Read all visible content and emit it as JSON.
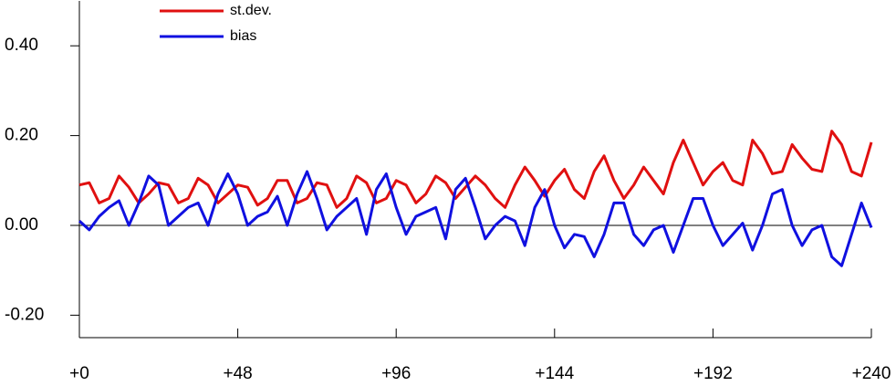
{
  "chart_data": {
    "type": "line",
    "x": [
      0,
      3,
      6,
      9,
      12,
      15,
      18,
      21,
      24,
      27,
      30,
      33,
      36,
      39,
      42,
      45,
      48,
      51,
      54,
      57,
      60,
      63,
      66,
      69,
      72,
      75,
      78,
      81,
      84,
      87,
      90,
      93,
      96,
      99,
      102,
      105,
      108,
      111,
      114,
      117,
      120,
      123,
      126,
      129,
      132,
      135,
      138,
      141,
      144,
      147,
      150,
      153,
      156,
      159,
      162,
      165,
      168,
      171,
      174,
      177,
      180,
      183,
      186,
      189,
      192,
      195,
      198,
      201,
      204,
      207,
      210,
      213,
      216,
      219,
      222,
      225,
      228,
      231,
      234,
      237,
      240
    ],
    "series": [
      {
        "name": "st.dev.",
        "color": "#e01010",
        "values": [
          0.09,
          0.095,
          0.05,
          0.06,
          0.11,
          0.085,
          0.05,
          0.07,
          0.095,
          0.09,
          0.05,
          0.06,
          0.105,
          0.09,
          0.05,
          0.07,
          0.09,
          0.085,
          0.045,
          0.06,
          0.1,
          0.1,
          0.05,
          0.06,
          0.095,
          0.09,
          0.04,
          0.06,
          0.11,
          0.095,
          0.05,
          0.06,
          0.1,
          0.09,
          0.05,
          0.07,
          0.11,
          0.095,
          0.06,
          0.085,
          0.11,
          0.09,
          0.06,
          0.04,
          0.09,
          0.13,
          0.1,
          0.065,
          0.1,
          0.125,
          0.08,
          0.06,
          0.12,
          0.155,
          0.1,
          0.06,
          0.09,
          0.13,
          0.1,
          0.07,
          0.14,
          0.19,
          0.14,
          0.09,
          0.12,
          0.14,
          0.1,
          0.09,
          0.19,
          0.16,
          0.115,
          0.12,
          0.18,
          0.15,
          0.125,
          0.12,
          0.21,
          0.18,
          0.12,
          0.11,
          0.185
        ]
      },
      {
        "name": "bias",
        "color": "#1010e0",
        "values": [
          0.01,
          -0.01,
          0.02,
          0.04,
          0.055,
          0.0,
          0.05,
          0.11,
          0.09,
          0.0,
          0.02,
          0.04,
          0.05,
          0.0,
          0.07,
          0.115,
          0.07,
          0.0,
          0.02,
          0.03,
          0.065,
          0.0,
          0.07,
          0.12,
          0.06,
          -0.01,
          0.02,
          0.04,
          0.06,
          -0.02,
          0.08,
          0.115,
          0.04,
          -0.02,
          0.02,
          0.03,
          0.04,
          -0.03,
          0.08,
          0.105,
          0.04,
          -0.03,
          0.0,
          0.02,
          0.01,
          -0.045,
          0.04,
          0.08,
          0.0,
          -0.05,
          -0.02,
          -0.025,
          -0.07,
          -0.02,
          0.05,
          0.05,
          -0.02,
          -0.045,
          -0.01,
          0.0,
          -0.06,
          0.0,
          0.06,
          0.06,
          0.0,
          -0.045,
          -0.02,
          0.005,
          -0.055,
          0.0,
          0.07,
          0.08,
          0.0,
          -0.045,
          -0.01,
          0.0,
          -0.07,
          -0.09,
          -0.02,
          0.05,
          -0.005
        ]
      }
    ],
    "xlim": [
      0,
      240
    ],
    "ylim": [
      -0.25,
      0.5
    ],
    "xticks": [
      {
        "value": 0,
        "label": "+0"
      },
      {
        "value": 48,
        "label": "+48"
      },
      {
        "value": 96,
        "label": "+96"
      },
      {
        "value": 144,
        "label": "+144"
      },
      {
        "value": 192,
        "label": "+192"
      },
      {
        "value": 240,
        "label": "+240"
      }
    ],
    "yticks": [
      {
        "value": -0.2,
        "label": "-0.20"
      },
      {
        "value": 0,
        "label": "0.00"
      },
      {
        "value": 0.2,
        "label": "0.20"
      },
      {
        "value": 0.4,
        "label": "0.40"
      }
    ],
    "hline": 0,
    "legend": "top-left"
  }
}
